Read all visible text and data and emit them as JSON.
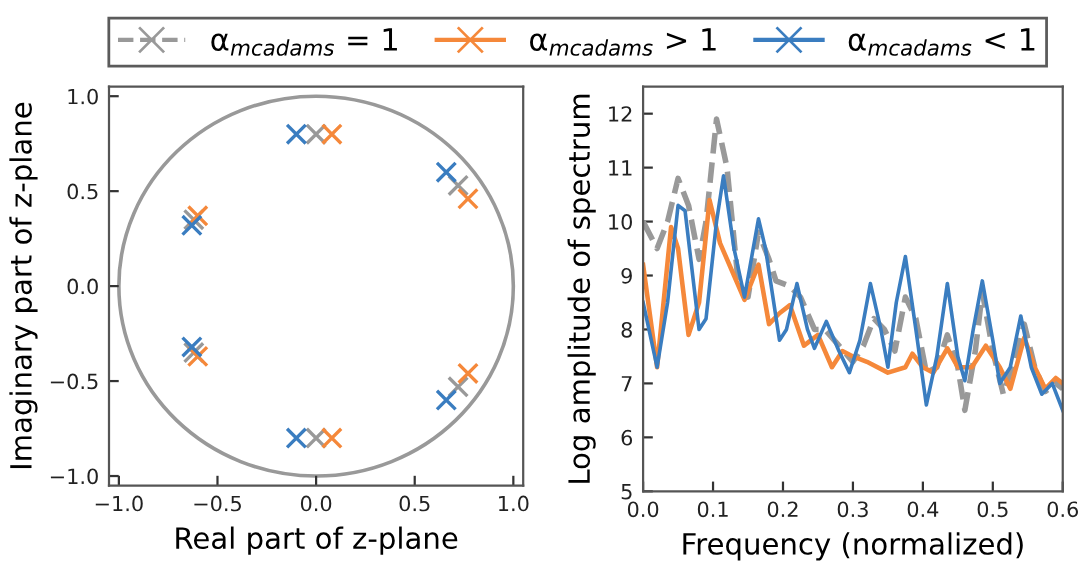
{
  "chart_data": [
    {
      "type": "scatter",
      "xlabel": "Real part of z-plane",
      "ylabel": "Imaginary part of z-plane",
      "legend": "top",
      "marker": "cross",
      "xlim": [
        -1.05,
        1.05
      ],
      "ylim": [
        -1.05,
        1.05
      ],
      "xticks": [
        {
          "value": -1,
          "label": "−1.0"
        },
        {
          "value": -0.5,
          "label": "−0.5"
        },
        {
          "value": 0,
          "label": "0.0"
        },
        {
          "value": 0.5,
          "label": "0.5"
        },
        {
          "value": 1,
          "label": "1.0"
        }
      ],
      "yticks": [
        {
          "value": -1,
          "label": "−1.0"
        },
        {
          "value": -0.5,
          "label": "−0.5"
        },
        {
          "value": 0,
          "label": "0.0"
        },
        {
          "value": 0.5,
          "label": "0.5"
        },
        {
          "value": 1,
          "label": "1.0"
        }
      ],
      "series": [
        {
          "name": "α$_{mcadams}$ = 1",
          "color": "#999999",
          "x": [
            0.0,
            0.0,
            0.72,
            0.72,
            -0.62,
            -0.62
          ],
          "values": [
            0.8,
            -0.8,
            0.53,
            -0.53,
            0.35,
            -0.35
          ]
        },
        {
          "name": "α$_{mcadams}$ > 1",
          "color": "#f5883a",
          "x": [
            0.08,
            0.08,
            0.77,
            0.77,
            -0.6,
            -0.6
          ],
          "values": [
            0.8,
            -0.8,
            0.46,
            -0.46,
            0.37,
            -0.37
          ]
        },
        {
          "name": "α$_{mcadams}$ < 1",
          "color": "#3a7dc0",
          "x": [
            -0.1,
            -0.1,
            0.66,
            0.66,
            -0.63,
            -0.63
          ],
          "values": [
            0.8,
            -0.8,
            0.6,
            -0.6,
            0.32,
            -0.32
          ]
        }
      ]
    },
    {
      "type": "line",
      "xlabel": "Frequency (normalized)",
      "ylabel": "Log amplitude of spectrum",
      "xlim": [
        0,
        0.6
      ],
      "ylim": [
        5,
        12.5
      ],
      "xticks": [
        {
          "value": 0,
          "label": "0.0"
        },
        0.1,
        0.2,
        0.3,
        0.4,
        0.5,
        0.6
      ],
      "yticks": [
        5,
        6,
        7,
        8,
        9,
        10,
        11,
        12
      ],
      "series": [
        {
          "color": "#999999",
          "line_style": "dashed",
          "x": [
            0.0,
            0.02,
            0.035,
            0.05,
            0.065,
            0.08,
            0.09,
            0.105,
            0.12,
            0.135,
            0.15,
            0.165,
            0.18,
            0.19,
            0.21,
            0.225,
            0.245,
            0.26,
            0.28,
            0.3,
            0.315,
            0.33,
            0.345,
            0.36,
            0.375,
            0.39,
            0.405,
            0.42,
            0.435,
            0.45,
            0.46,
            0.475,
            0.485,
            0.5,
            0.515,
            0.53,
            0.545,
            0.56,
            0.575,
            0.59,
            0.6
          ],
          "values": [
            10.0,
            9.5,
            10.0,
            10.8,
            10.3,
            9.3,
            10.0,
            11.9,
            11.0,
            9.0,
            8.6,
            9.8,
            9.3,
            8.9,
            8.8,
            8.6,
            8.0,
            8.0,
            7.7,
            7.4,
            7.7,
            8.2,
            8.0,
            7.6,
            8.6,
            8.2,
            7.2,
            7.3,
            7.9,
            7.3,
            6.5,
            7.6,
            8.7,
            7.6,
            6.8,
            7.4,
            8.1,
            7.3,
            6.85,
            7.0,
            6.9
          ]
        },
        {
          "color": "#f5883a",
          "x": [
            0.0,
            0.02,
            0.04,
            0.05,
            0.065,
            0.08,
            0.095,
            0.11,
            0.13,
            0.145,
            0.165,
            0.18,
            0.195,
            0.21,
            0.23,
            0.25,
            0.27,
            0.285,
            0.3,
            0.32,
            0.35,
            0.375,
            0.385,
            0.4,
            0.415,
            0.435,
            0.45,
            0.47,
            0.49,
            0.51,
            0.525,
            0.545,
            0.56,
            0.575,
            0.59,
            0.6
          ],
          "values": [
            9.2,
            7.3,
            9.9,
            9.5,
            7.9,
            8.5,
            10.4,
            9.6,
            9.0,
            8.55,
            9.2,
            8.1,
            8.3,
            8.45,
            7.7,
            7.9,
            7.3,
            7.6,
            7.5,
            7.4,
            7.2,
            7.3,
            7.55,
            7.3,
            7.2,
            7.65,
            7.3,
            7.3,
            7.7,
            7.3,
            6.9,
            7.85,
            7.3,
            6.9,
            7.1,
            7.0
          ]
        },
        {
          "color": "#3a7dc0",
          "x": [
            0.0,
            0.02,
            0.035,
            0.05,
            0.06,
            0.08,
            0.09,
            0.105,
            0.115,
            0.13,
            0.145,
            0.165,
            0.175,
            0.195,
            0.205,
            0.22,
            0.235,
            0.245,
            0.262,
            0.28,
            0.295,
            0.31,
            0.325,
            0.34,
            0.35,
            0.362,
            0.375,
            0.39,
            0.405,
            0.42,
            0.435,
            0.45,
            0.46,
            0.472,
            0.485,
            0.5,
            0.51,
            0.525,
            0.54,
            0.555,
            0.57,
            0.585,
            0.6
          ],
          "values": [
            8.5,
            7.3,
            8.5,
            10.3,
            10.2,
            8.0,
            8.2,
            10.0,
            10.85,
            9.5,
            8.6,
            10.05,
            9.5,
            7.8,
            8.0,
            8.85,
            8.0,
            7.65,
            8.15,
            7.6,
            7.2,
            7.8,
            8.85,
            8.0,
            7.3,
            8.5,
            9.35,
            8.0,
            6.6,
            7.5,
            8.85,
            7.5,
            7.05,
            8.0,
            8.9,
            7.8,
            7.0,
            7.3,
            8.25,
            7.3,
            6.8,
            7.0,
            6.5
          ]
        }
      ]
    }
  ]
}
